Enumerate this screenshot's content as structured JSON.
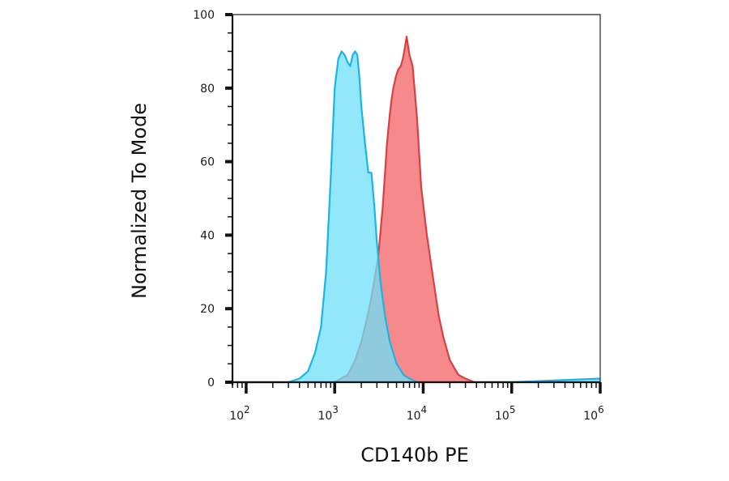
{
  "chart_data": {
    "type": "area",
    "xlabel": "CD140b PE",
    "ylabel": "Normalized To Mode",
    "x_scale": "log",
    "xlim": [
      70,
      1000000
    ],
    "ylim": [
      0,
      100
    ],
    "yticks": [
      0,
      20,
      40,
      60,
      80,
      100
    ],
    "ytick_labels": [
      "0",
      "20",
      "40",
      "60",
      "80",
      "100"
    ],
    "xticks": [
      {
        "value": 100,
        "base": "10",
        "exp": "2"
      },
      {
        "value": 1000,
        "base": "10",
        "exp": "3"
      },
      {
        "value": 10000,
        "base": "10",
        "exp": "4"
      },
      {
        "value": 100000,
        "base": "10",
        "exp": "5"
      },
      {
        "value": 1000000,
        "base": "10",
        "exp": "6"
      }
    ],
    "grid": false,
    "legend": "none",
    "series": [
      {
        "color": "#d94040",
        "fill": "#f5898c",
        "x": [
          70,
          1000,
          1400,
          1700,
          2000,
          2300,
          2600,
          3100,
          3500,
          3900,
          4200,
          4400,
          4600,
          4900,
          5200,
          5600,
          5900,
          6200,
          6500,
          7000,
          7600,
          8500,
          9500,
          11000,
          13000,
          15000,
          17000,
          20000,
          25000,
          30000,
          38000,
          1000000
        ],
        "y": [
          0,
          0,
          2,
          6,
          11,
          17,
          23,
          34,
          48,
          65,
          73,
          77,
          80,
          83,
          85,
          86,
          88,
          91,
          94,
          89,
          86,
          72,
          53,
          40,
          28,
          18,
          12,
          6,
          2,
          1,
          0,
          0
        ]
      },
      {
        "color": "#1cb4e4",
        "fill": "#6ee0f8",
        "fill_opacity": 0.75,
        "x": [
          70,
          300,
          400,
          500,
          600,
          700,
          800,
          900,
          1000,
          1100,
          1200,
          1300,
          1400,
          1500,
          1600,
          1700,
          1800,
          1900,
          2000,
          2200,
          2400,
          2600,
          2800,
          3000,
          3300,
          3700,
          4200,
          5000,
          6000,
          7000,
          8500,
          10000,
          100000,
          1000000
        ],
        "y": [
          0,
          0,
          1,
          3,
          8,
          15,
          30,
          55,
          80,
          88,
          90,
          89,
          87,
          86,
          89,
          90,
          89,
          83,
          75,
          65,
          57,
          57,
          48,
          38,
          27,
          18,
          11,
          5,
          2,
          1,
          0,
          0,
          0,
          1
        ]
      }
    ]
  }
}
